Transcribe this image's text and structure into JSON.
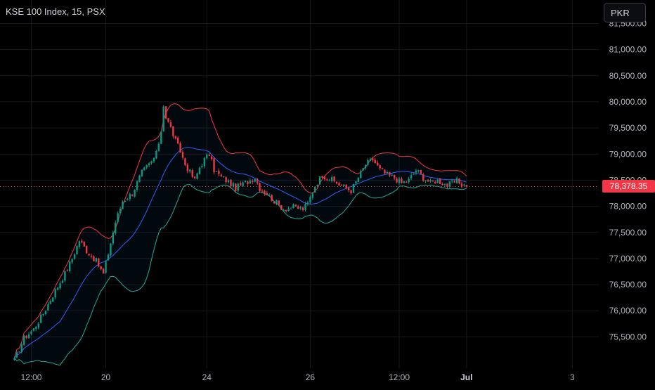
{
  "header": {
    "title": "KSE 100 Index, 15, PSX",
    "currency": "PKR"
  },
  "last_price_label": "78,378.35",
  "colors": {
    "background": "#000000",
    "up": "#089981",
    "down": "#f23645",
    "basis": "#2962ff",
    "upper": "#f23645",
    "lower": "#22ab94",
    "grid": "#16181d"
  },
  "chart_data": {
    "type": "candlestick",
    "title": "KSE 100 Index, 15, PSX",
    "ylim": [
      74900,
      81950
    ],
    "y_ticks": [
      75500,
      76000,
      76500,
      77000,
      77500,
      78000,
      78500,
      79000,
      79500,
      80000,
      80500,
      81000,
      81500
    ],
    "y_tick_labels": [
      "75,500.00",
      "76,000.00",
      "76,500.00",
      "77,000.00",
      "77,500.00",
      "78,000.00",
      "78,500.00",
      "79,000.00",
      "79,500.00",
      "80,000.00",
      "80,500.00",
      "81,000.00",
      "81,500.00"
    ],
    "x_tick_labels": [
      "12:00",
      "20",
      "24",
      "26",
      "12:00",
      "Jul",
      "3"
    ],
    "x_tick_bars": [
      7,
      38,
      80,
      123,
      160,
      188,
      232
    ],
    "bars_in_data": 189,
    "x_range_bars": [
      -6,
      243
    ],
    "last_price": 78378.35,
    "anchors": [
      [
        0,
        75050
      ],
      [
        4,
        75480
      ],
      [
        8,
        75650
      ],
      [
        12,
        75950
      ],
      [
        16,
        76300
      ],
      [
        19,
        76550
      ],
      [
        22,
        76800
      ],
      [
        24,
        77000
      ],
      [
        27,
        77350
      ],
      [
        30,
        77150
      ],
      [
        34,
        76950
      ],
      [
        37,
        76700
      ],
      [
        39,
        77100
      ],
      [
        42,
        77700
      ],
      [
        45,
        78100
      ],
      [
        49,
        78250
      ],
      [
        53,
        78650
      ],
      [
        57,
        78850
      ],
      [
        59,
        79000
      ],
      [
        61,
        79450
      ],
      [
        62,
        79950
      ],
      [
        63,
        79700
      ],
      [
        65,
        79500
      ],
      [
        67,
        79250
      ],
      [
        69,
        79050
      ],
      [
        71,
        78800
      ],
      [
        73,
        78650
      ],
      [
        75,
        78500
      ],
      [
        77,
        78750
      ],
      [
        79,
        78900
      ],
      [
        81,
        79000
      ],
      [
        83,
        78700
      ],
      [
        85,
        78600
      ],
      [
        88,
        78500
      ],
      [
        92,
        78350
      ],
      [
        96,
        78450
      ],
      [
        100,
        78550
      ],
      [
        102,
        78350
      ],
      [
        105,
        78250
      ],
      [
        108,
        78100
      ],
      [
        112,
        77950
      ],
      [
        116,
        77980
      ],
      [
        120,
        77950
      ],
      [
        122,
        78050
      ],
      [
        125,
        78400
      ],
      [
        128,
        78600
      ],
      [
        132,
        78500
      ],
      [
        136,
        78400
      ],
      [
        140,
        78300
      ],
      [
        143,
        78550
      ],
      [
        146,
        78800
      ],
      [
        149,
        78900
      ],
      [
        152,
        78700
      ],
      [
        155,
        78600
      ],
      [
        158,
        78550
      ],
      [
        161,
        78450
      ],
      [
        164,
        78500
      ],
      [
        167,
        78700
      ],
      [
        170,
        78550
      ],
      [
        173,
        78450
      ],
      [
        176,
        78500
      ],
      [
        180,
        78400
      ],
      [
        184,
        78480
      ],
      [
        188,
        78378
      ]
    ],
    "series": []
  }
}
